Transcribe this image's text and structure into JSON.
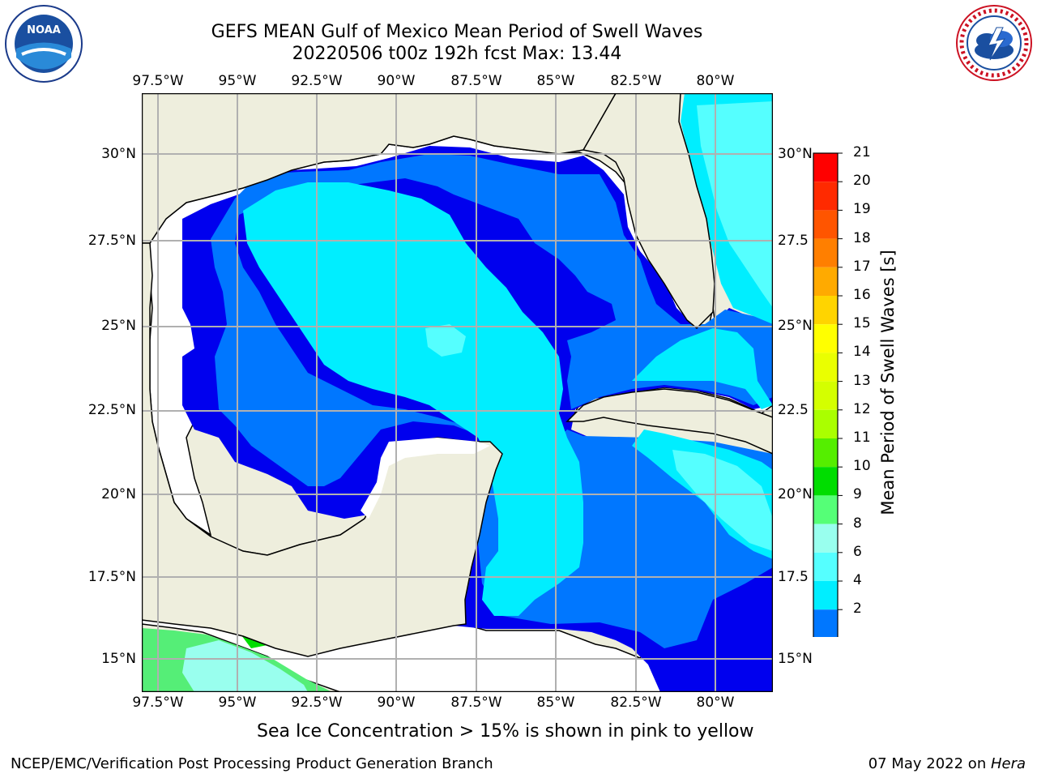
{
  "title_line1": "GEFS MEAN Gulf of Mexico Mean Period of Swell Waves",
  "title_line2": "20220506 t00z 192h fcst   Max: 13.44",
  "lon_labels": [
    "97.5°W",
    "95°W",
    "92.5°W",
    "90°W",
    "87.5°W",
    "85°W",
    "82.5°W",
    "80°W"
  ],
  "lat_labels_left": [
    "30°N",
    "27.5°N",
    "25°N",
    "22.5°N",
    "20°N",
    "17.5°N",
    "15°N"
  ],
  "lat_labels_right": [
    "30°N",
    "27.5",
    "25°N",
    "22.5",
    "20°N",
    "17.5",
    "15°N"
  ],
  "colorbar": {
    "label": "Mean Period of Swell Waves [s]",
    "ticks": [
      "21",
      "20",
      "19",
      "18",
      "17",
      "16",
      "15",
      "14",
      "13",
      "12",
      "11",
      "10",
      "9",
      "8",
      "6",
      "4",
      "2"
    ],
    "colors": [
      "#ff0000",
      "#ff2a00",
      "#ff5500",
      "#ff7f00",
      "#ffaa00",
      "#ffd400",
      "#ffff00",
      "#eaff00",
      "#d4ff00",
      "#aaff00",
      "#55ee00",
      "#00dd00",
      "#55ff77",
      "#99ffee",
      "#55ffff",
      "#00eeff",
      "#0077ff"
    ],
    "extend_color": "#0000ee"
  },
  "ice_note": "Sea Ice Concentration > 15% is shown in pink to yellow",
  "footer_left": "NCEP/EMC/Verification Post Processing Product Generation Branch",
  "footer_right_prefix": "07 May 2022 on ",
  "footer_right_italic": "Hera",
  "logos": {
    "noaa": "NOAA",
    "nws_text": "NATIONAL WEATHER SERVICE"
  },
  "colors": {
    "land": "#eeeedd",
    "water_dark": "#0000ee",
    "water_mid": "#0077ff",
    "water_cyan": "#00eeff",
    "grid": "#b0b0b0"
  }
}
